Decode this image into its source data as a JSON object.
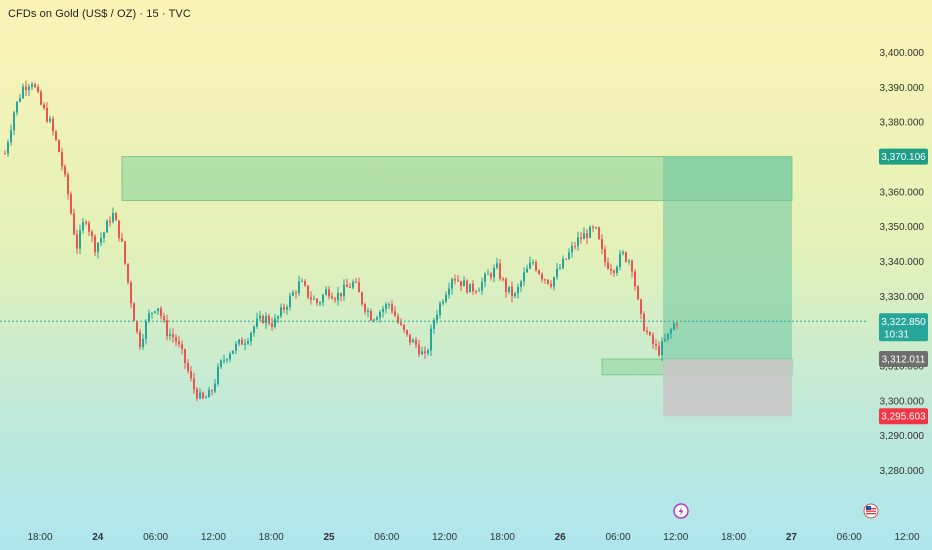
{
  "header": {
    "title": "CFDs on Gold (US$ / OZ) · 15 · TVC"
  },
  "colors": {
    "up": "#26a69a",
    "down": "#ef5350",
    "zone_green": "#8fd59c",
    "profit": "#6cc7a3",
    "loss": "#c9c3c6",
    "tag_price": "#26a69a",
    "tag_gray": "#6e6e6e",
    "tag_red": "#f23645",
    "tag_green": "#1e9e87"
  },
  "icons": [
    "lightning-event-icon",
    "us-flag-event-icon"
  ],
  "chart_data": {
    "type": "candlestick",
    "title": "CFDs on Gold (US$ / OZ) · 15 · TVC",
    "ylim": [
      3275,
      3405
    ],
    "y_ticks": [
      "3,400.000",
      "3,390.000",
      "3,380.000",
      "3,370.000",
      "3,360.000",
      "3,350.000",
      "3,340.000",
      "3,330.000",
      "3,320.000",
      "3,310.000",
      "3,300.000",
      "3,290.000",
      "3,280.000"
    ],
    "x_ticks": [
      "18:00",
      "24",
      "06:00",
      "12:00",
      "18:00",
      "25",
      "06:00",
      "12:00",
      "18:00",
      "26",
      "06:00",
      "12:00",
      "18:00",
      "27",
      "06:00",
      "12:00"
    ],
    "price_path": [
      3371,
      3383,
      3390,
      3392,
      3385,
      3380,
      3372,
      3360,
      3344,
      3353,
      3344,
      3348,
      3354,
      3346,
      3330,
      3316,
      3324,
      3328,
      3320,
      3318,
      3312,
      3304,
      3300,
      3302,
      3310,
      3314,
      3316,
      3318,
      3322,
      3324,
      3322,
      3326,
      3330,
      3334,
      3330,
      3328,
      3332,
      3330,
      3332,
      3334,
      3328,
      3324,
      3326,
      3328,
      3322,
      3318,
      3316,
      3312,
      3324,
      3330,
      3336,
      3334,
      3332,
      3333,
      3336,
      3338,
      3332,
      3330,
      3336,
      3340,
      3336,
      3334,
      3338,
      3342,
      3346,
      3348,
      3349,
      3340,
      3338,
      3342,
      3340,
      3324,
      3318,
      3314,
      3318,
      3323
    ],
    "zones": [
      {
        "name": "supply-zone",
        "y_top": 3370.106,
        "y_bottom": 3357.5
      },
      {
        "name": "demand-zone",
        "y_top": 3312.011,
        "y_bottom": 3307.5
      },
      {
        "name": "profit-zone",
        "y_top": 3370.106,
        "y_bottom": 3312.011
      },
      {
        "name": "loss-zone",
        "y_top": 3312.011,
        "y_bottom": 3295.603
      }
    ],
    "current_price": 3322.85,
    "price_labels": [
      {
        "value": "3,370.106",
        "price": 3370.106,
        "kind": "target"
      },
      {
        "value": "3,322.850",
        "price": 3322.85,
        "kind": "current",
        "timer": "10:31"
      },
      {
        "value": "3,312.011",
        "price": 3312.011,
        "kind": "entry"
      },
      {
        "value": "3,295.603",
        "price": 3295.603,
        "kind": "stop"
      }
    ],
    "grid": false
  }
}
